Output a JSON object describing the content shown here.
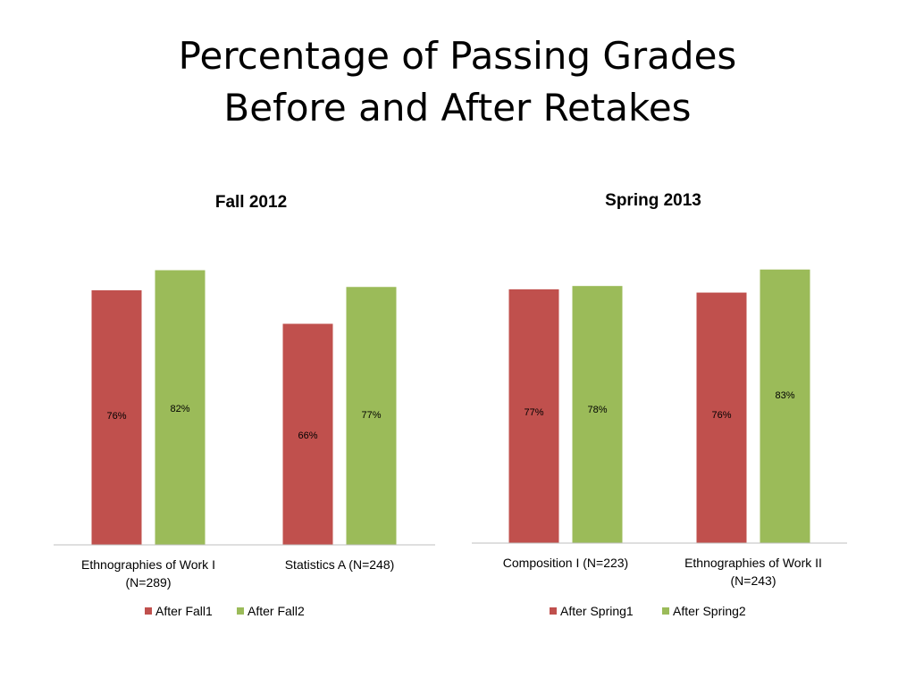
{
  "slide": {
    "title_line1": "Percentage of Passing Grades",
    "title_line2": "Before and After Retakes"
  },
  "colors": {
    "series1": "#c0504d",
    "series2": "#9bbb59",
    "axis": "#bfbfbf"
  },
  "chart_data": [
    {
      "type": "bar",
      "title": "Fall 2012",
      "categories": [
        [
          "Ethnographies of Work I",
          "(N=289)"
        ],
        [
          "Statistics A (N=248)"
        ]
      ],
      "series": [
        {
          "name": "After Fall1",
          "values": [
            76,
            66
          ],
          "labels": [
            "76%",
            "66%"
          ]
        },
        {
          "name": "After Fall2",
          "values": [
            82,
            77
          ],
          "labels": [
            "82%",
            "77%"
          ]
        }
      ],
      "ylim": [
        0,
        100
      ],
      "grid": false,
      "legend": "bottom"
    },
    {
      "type": "bar",
      "title": "Spring 2013",
      "categories": [
        [
          "Composition I (N=223)"
        ],
        [
          "Ethnographies of Work II",
          "(N=243)"
        ]
      ],
      "series": [
        {
          "name": "After Spring1",
          "values": [
            77,
            76
          ],
          "labels": [
            "77%",
            "76%"
          ]
        },
        {
          "name": "After Spring2",
          "values": [
            78,
            83
          ],
          "labels": [
            "78%",
            "83%"
          ]
        }
      ],
      "ylim": [
        0,
        100
      ],
      "grid": false,
      "legend": "bottom"
    }
  ]
}
